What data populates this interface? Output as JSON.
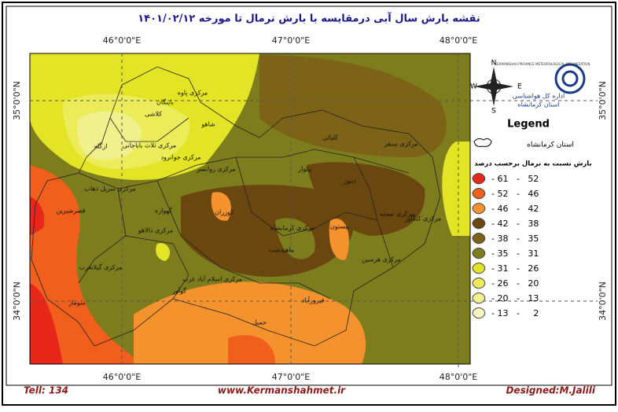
{
  "title": "نقشه بارش سال آبی درمقایسه با بارش نرمال تا مورخه ۱۴۰۱/۰۲/۱۲",
  "axes": {
    "longitudes": [
      "46°0'0\"E",
      "47°0'0\"E",
      "48°0'0\"E"
    ],
    "latitudes": [
      "35°0'0\"N",
      "34°0'0\"N"
    ]
  },
  "compass": {
    "n": "N",
    "s": "S",
    "e": "E",
    "w": "W"
  },
  "logo": {
    "org_en": "KERMANSHAH PROVINCE METEOROLOGICAL ORGANIZATION",
    "org_fa_1": "اداره کل هواشناسی",
    "org_fa_2": "استان کرمانشاه"
  },
  "legend": {
    "title": "Legend",
    "province": "استان کرمانشاه",
    "subtitle": "بارش نسبت به نرمال برحسب درصد",
    "classes": [
      {
        "label": "- 61   -   52",
        "color": "#e8261a"
      },
      {
        "label": "- 52   -   46",
        "color": "#f0601c"
      },
      {
        "label": "- 46   -   42",
        "color": "#f4922e"
      },
      {
        "label": "- 42   -   38",
        "color": "#6b4710"
      },
      {
        "label": "- 38   -   35",
        "color": "#7c6318"
      },
      {
        "label": "- 35   -   31",
        "color": "#7d7d1e"
      },
      {
        "label": "- 31   -   26",
        "color": "#e4e426"
      },
      {
        "label": "- 26   -   20",
        "color": "#ecec5a"
      },
      {
        "label": "- 20   -   13",
        "color": "#f0f08c"
      },
      {
        "label": "- 13   -     2",
        "color": "#f6f6c0"
      }
    ]
  },
  "counties": [
    "مرکزی پاوه",
    "باینگان",
    "کلاشی",
    "شاهو",
    "ازگله",
    "مرکزی ثلاث باباجانی",
    "مرکزی جوانرود",
    "مرکزی روانسر",
    "کلیائی",
    "مرکزی سنقر",
    "بیلوار",
    "دینور",
    "مرکزی سرپل ذهاب",
    "قصرشیرین",
    "گهواره",
    "کوزران",
    "مرکزی کرمانشاه",
    "بیستون",
    "مرکزی صحنه",
    "مرکزی کنگاور",
    "مرکزی دالاهو",
    "مرکزی گیلانغرب",
    "ماهیدشت",
    "مرکزی هرسین",
    "مرکزی اسلام آباد غرب",
    "گوآور",
    "سومار",
    "فیروزآباد",
    "حمیل"
  ],
  "footer": {
    "tell": "Tell: 134",
    "website": "www.Kermanshahmet.ir",
    "designer": "Designed:M.Jalili"
  }
}
